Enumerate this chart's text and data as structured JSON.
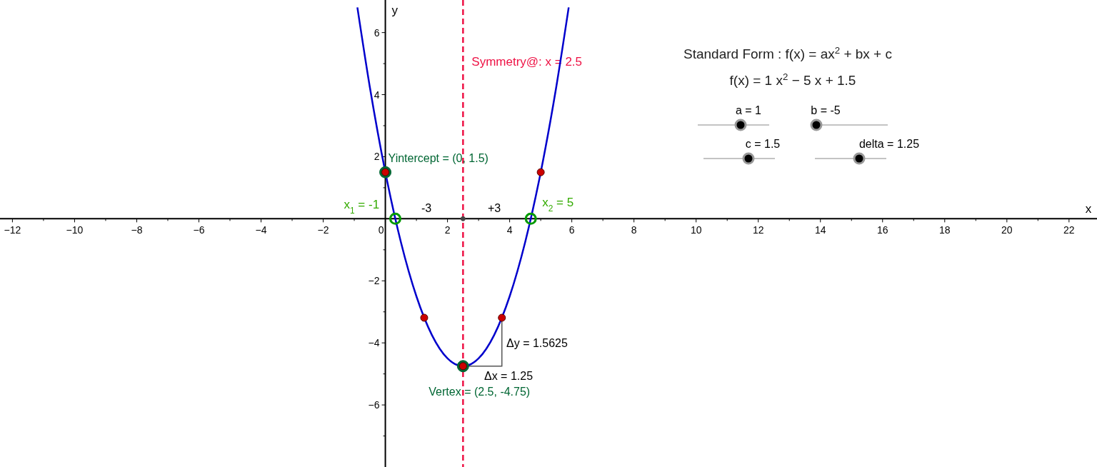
{
  "chart_data": {
    "type": "line",
    "xlabel": "x",
    "ylabel": "y",
    "xlim": [
      -12.4,
      22.9
    ],
    "ylim": [
      -8,
      7.05
    ],
    "xticks": [
      {
        "value": -12,
        "label": "−12"
      },
      {
        "value": -11,
        "label": null
      },
      {
        "value": -10,
        "label": "−10"
      },
      {
        "value": -9,
        "label": null
      },
      {
        "value": -8,
        "label": "−8"
      },
      {
        "value": -7,
        "label": null
      },
      {
        "value": -6,
        "label": "−6"
      },
      {
        "value": -5,
        "label": null
      },
      {
        "value": -4,
        "label": "−4"
      },
      {
        "value": -3,
        "label": null
      },
      {
        "value": -2,
        "label": "−2"
      },
      {
        "value": -1,
        "label": null
      },
      0,
      {
        "value": 1,
        "label": null
      },
      2,
      {
        "value": 3,
        "label": null
      },
      4,
      {
        "value": 5,
        "label": null
      },
      6,
      {
        "value": 7,
        "label": null
      },
      8,
      {
        "value": 9,
        "label": null
      },
      10,
      {
        "value": 11,
        "label": null
      },
      12,
      {
        "value": 13,
        "label": null
      },
      14,
      {
        "value": 15,
        "label": null
      },
      16,
      {
        "value": 17,
        "label": null
      },
      18,
      {
        "value": 19,
        "label": null
      },
      20,
      {
        "value": 21,
        "label": null
      },
      22
    ],
    "yticks": [
      {
        "value": -7,
        "label": null
      },
      {
        "value": -6,
        "label": "−6"
      },
      {
        "value": -5,
        "label": null
      },
      {
        "value": -4,
        "label": "−4"
      },
      {
        "value": -3,
        "label": null
      },
      {
        "value": -2,
        "label": "−2"
      },
      {
        "value": -1,
        "label": null
      },
      {
        "value": 1,
        "label": null
      },
      2,
      {
        "value": 3,
        "label": null
      },
      4,
      {
        "value": 5,
        "label": null
      },
      6
    ],
    "grid": false,
    "series": [
      {
        "color": "#0000cc",
        "marker": "none",
        "line_style": "solid",
        "x": [
          -0.9,
          -0.5,
          0,
          0.5,
          1,
          1.5,
          2,
          2.5,
          3,
          3.5,
          4,
          4.5,
          5,
          5.5,
          5.9
        ],
        "values": [
          6.81,
          4.25,
          1.5,
          -0.75,
          -2.5,
          -3.75,
          -4.5,
          -4.75,
          -4.5,
          -3.75,
          -2.5,
          -0.75,
          1.5,
          4.25,
          6.81
        ]
      },
      {
        "type": "scatter",
        "color": "#006633",
        "marker": "circle",
        "x": [
          0,
          2.5
        ],
        "values": [
          1.5,
          -4.75
        ]
      },
      {
        "type": "scatter",
        "color": "#cc0000",
        "marker": "circle",
        "x": [
          0,
          5,
          1.25,
          3.75,
          2.5
        ],
        "values": [
          1.5,
          1.5,
          -3.19,
          -3.19,
          -4.75
        ]
      },
      {
        "type": "scatter",
        "color": "#009900",
        "marker": "circle",
        "x": [
          0.32,
          4.68
        ],
        "values": [
          0,
          0
        ]
      },
      {
        "type": "scatter",
        "color": "#444444",
        "marker": "circle",
        "x": [
          2.5
        ],
        "values": [
          0
        ]
      }
    ],
    "ref_lines": [
      {
        "axis": "x",
        "value": 2.5,
        "label": "Symmetry@: x = 2.5",
        "color": "#ee1144",
        "line_style": "dashed"
      }
    ],
    "annotations": [
      "Standard Form : f(x) = ax$^{2}$ + bx + c",
      "f(x) = 1 x$^{2}$ − 5 x + 1.5",
      "a = 1",
      "b = -5",
      "c = 1.5",
      "delta = 1.25",
      {
        "text": "Yintercept = (0, 1.5)",
        "x": 0,
        "y": 1.5
      },
      {
        "text": "Vertex = (2.5, -4.75)",
        "x": 2.5,
        "y": -4.75
      },
      {
        "text": "x$_{1}$ = -1",
        "x": 0.32,
        "y": 0
      },
      {
        "text": "x$_{2}$ = 5",
        "x": 4.68,
        "y": 0
      },
      "-3",
      "+3",
      "Δy = 1.5625",
      "Δx = 1.25"
    ]
  }
}
